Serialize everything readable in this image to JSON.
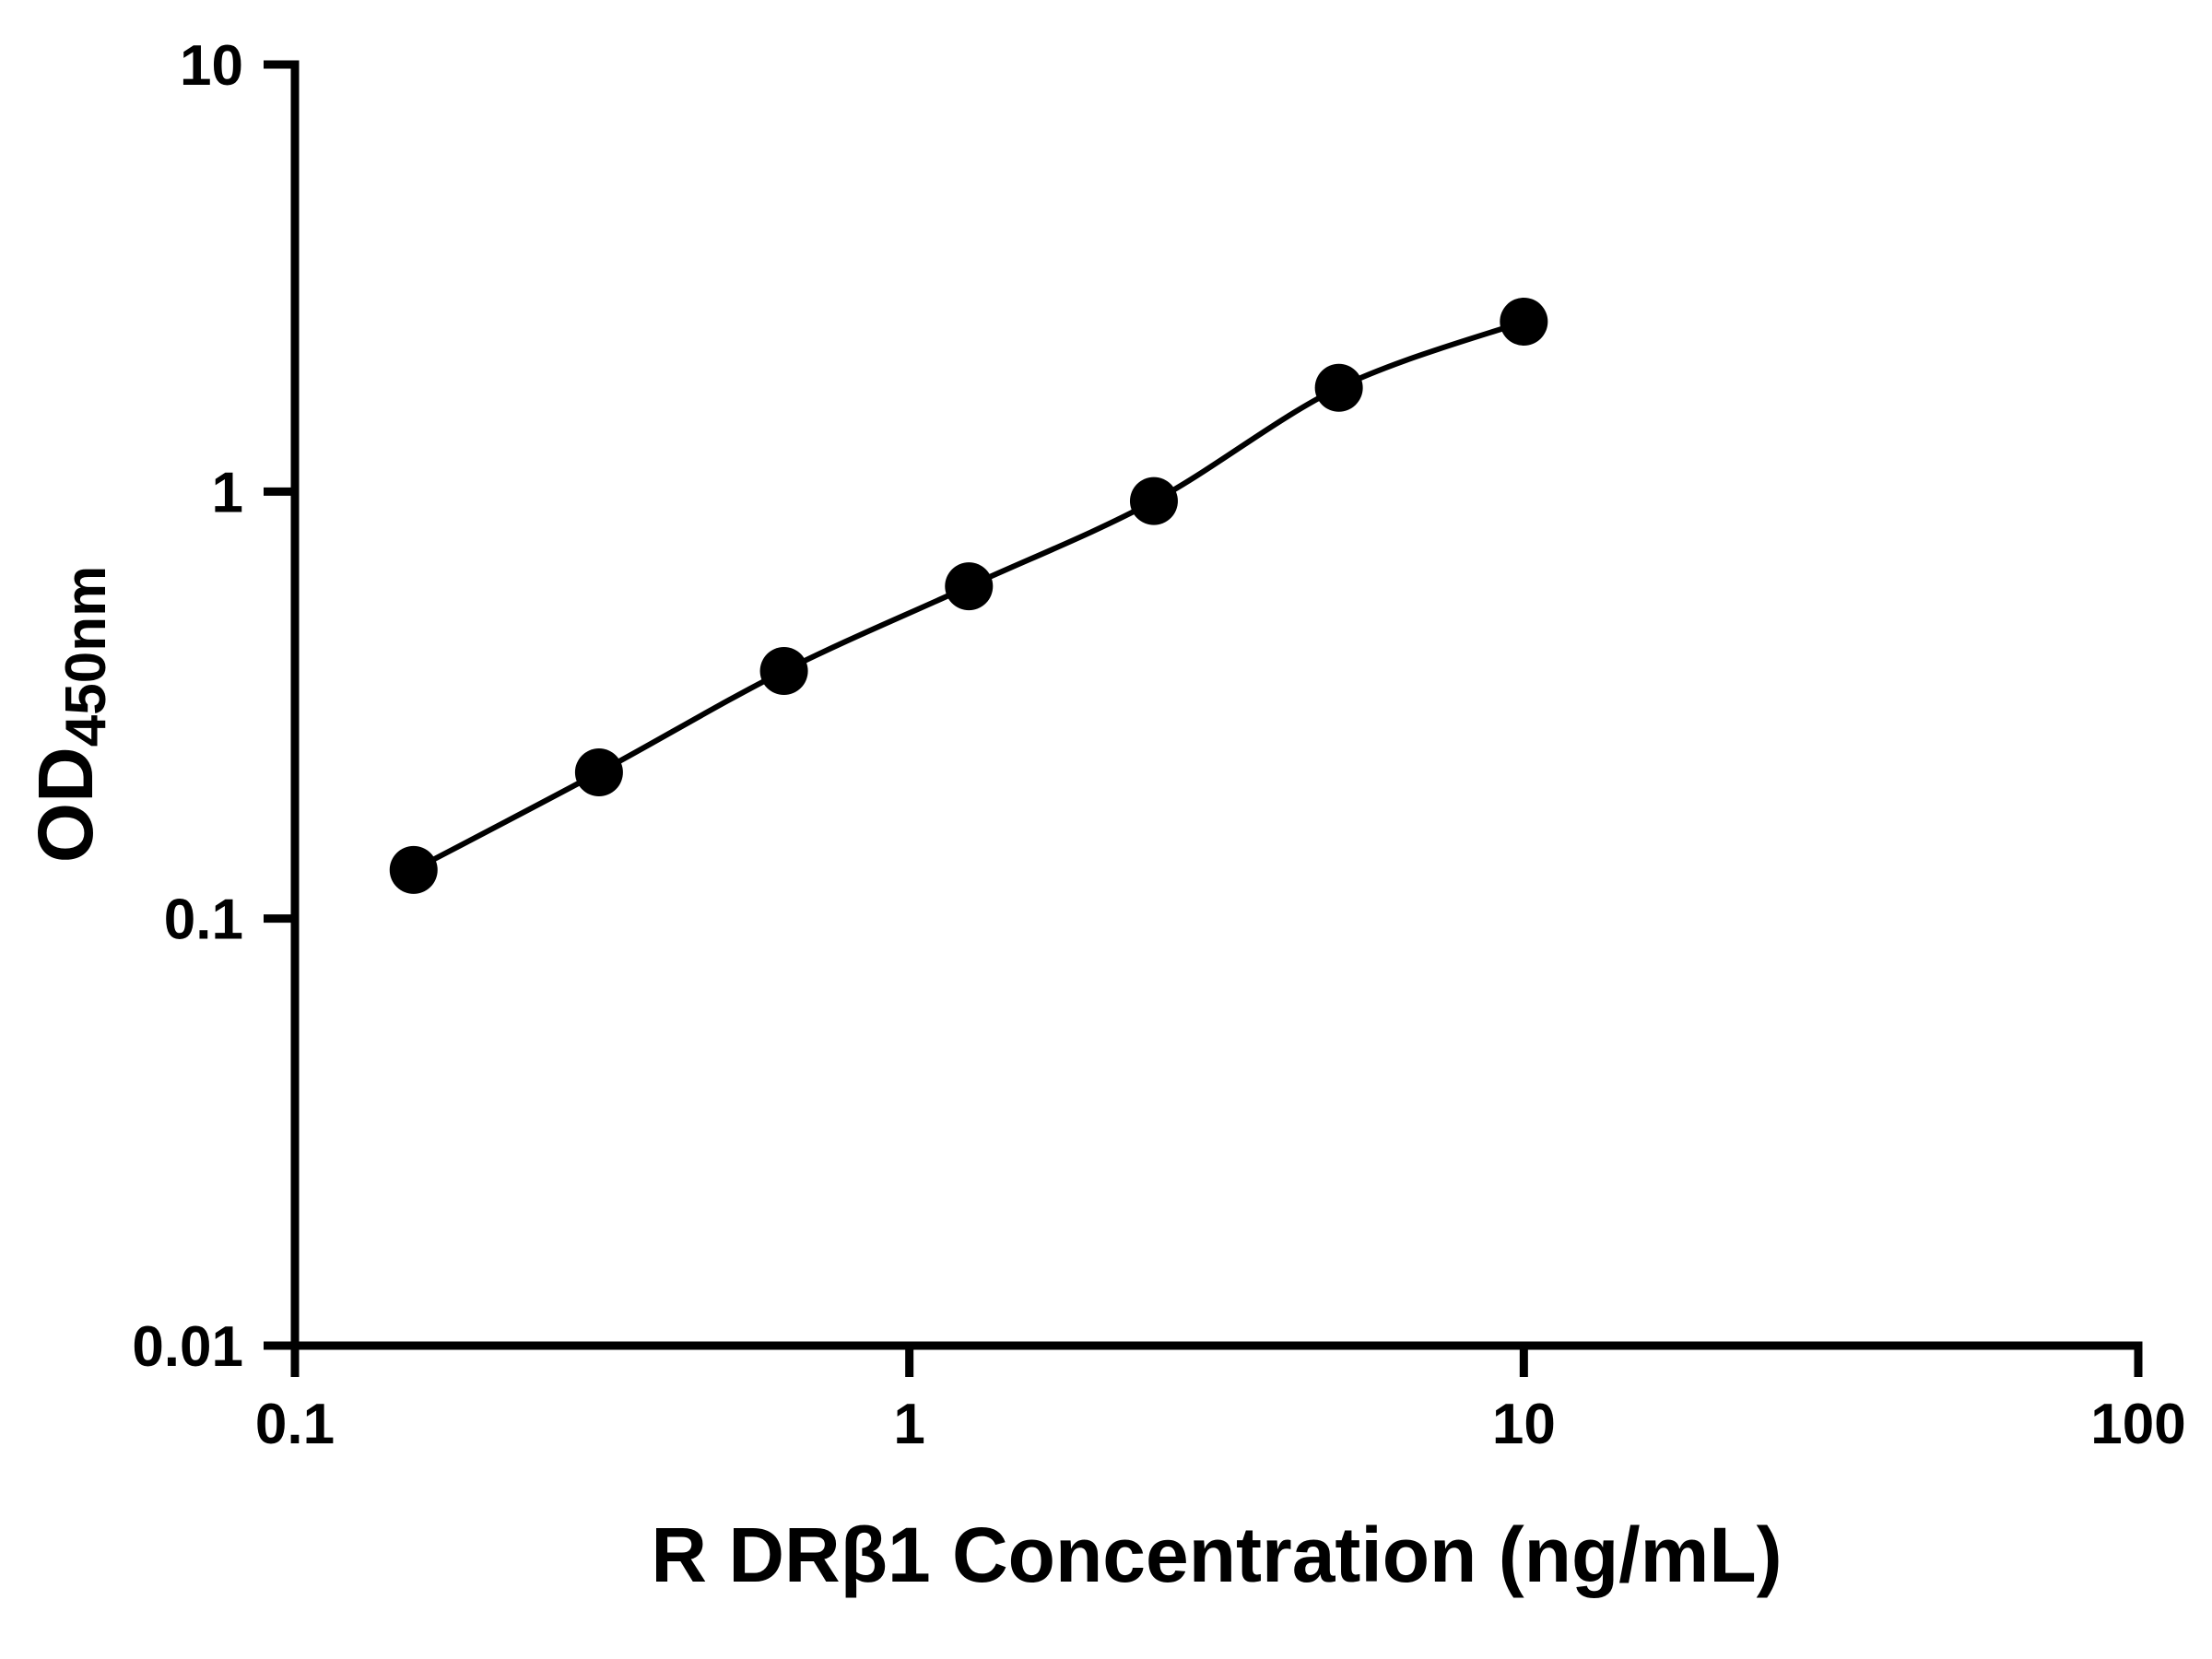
{
  "chart_data": {
    "type": "scatter",
    "title": "",
    "xlabel": "R DRβ1 Concentration (ng/mL)",
    "ylabel_main": "OD",
    "ylabel_sub": "450nm",
    "x": [
      0.156,
      0.3125,
      0.625,
      1.25,
      2.5,
      5,
      10
    ],
    "y": [
      0.13,
      0.22,
      0.38,
      0.6,
      0.95,
      1.75,
      2.5
    ],
    "x_scale": "log",
    "y_scale": "log",
    "xlim": [
      0.1,
      100
    ],
    "ylim": [
      0.01,
      10
    ],
    "x_ticks": [
      0.1,
      1,
      10,
      100
    ],
    "x_tick_labels": [
      "0.1",
      "1",
      "10",
      "100"
    ],
    "y_ticks": [
      0.01,
      0.1,
      1,
      10
    ],
    "y_tick_labels": [
      "0.01",
      "0.1",
      "1",
      "10"
    ],
    "curve": "smooth-fit-through-points",
    "marker_shape": "circle",
    "marker_color": "#000000",
    "line_color": "#000000",
    "axis_color": "#000000",
    "background": "#ffffff",
    "grid": false,
    "legend": "none"
  }
}
